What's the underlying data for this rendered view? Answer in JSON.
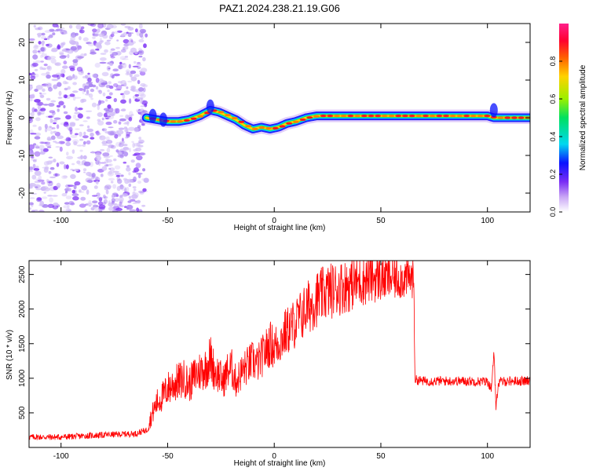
{
  "title": "PAZ1.2024.238.21.19.G06",
  "chart_data": [
    {
      "type": "heatmap",
      "xlabel": "Height of straight line (km)",
      "ylabel": "Frequency (Hz)",
      "xlim": [
        -115,
        120
      ],
      "ylim": [
        -25,
        25
      ],
      "xticks": [
        -100,
        -50,
        0,
        50,
        100
      ],
      "yticks": [
        -20,
        -10,
        0,
        10,
        20
      ],
      "colorbar": {
        "label": "Normalized spectral amplitude",
        "range": [
          0,
          1
        ],
        "ticks": [
          0.0,
          0.2,
          0.4,
          0.6,
          0.8
        ],
        "colors": [
          "#ffffff",
          "#c9a6f5",
          "#7a2cf5",
          "#0a12ff",
          "#00d8f0",
          "#00e060",
          "#9bf000",
          "#ffd200",
          "#ff6000",
          "#ff0030",
          "#ff208a"
        ]
      },
      "noise_region": {
        "x": [
          -115,
          -60
        ],
        "y": [
          -25,
          25
        ],
        "level": 0.15
      },
      "ridge": {
        "x": [
          -60,
          -55,
          -50,
          -45,
          -40,
          -35,
          -30,
          -26,
          -22,
          -18,
          -14,
          -10,
          -6,
          -2,
          2,
          6,
          10,
          15,
          20,
          30,
          40,
          50,
          60,
          70,
          80,
          90,
          100,
          103,
          106,
          110,
          120
        ],
        "y": [
          0,
          -0.5,
          -1,
          -1,
          -0.5,
          0.5,
          2,
          1.5,
          0.5,
          -0.5,
          -2,
          -3,
          -2.5,
          -3,
          -2.5,
          -1.5,
          -1,
          0,
          0.5,
          0.5,
          0.5,
          0.5,
          0.5,
          0.5,
          0.5,
          0.5,
          0.5,
          0,
          0,
          0,
          0
        ],
        "amplitude": 0.95
      },
      "grid": false
    },
    {
      "type": "line",
      "xlabel": "Height of straight line (km)",
      "ylabel": "SNR (10 * v/v)",
      "xlim": [
        -115,
        120
      ],
      "ylim": [
        0,
        2700
      ],
      "xticks": [
        -100,
        -50,
        0,
        50,
        100
      ],
      "yticks": [
        500,
        1000,
        1500,
        2000,
        2500
      ],
      "color": "#ff0000",
      "grid": false,
      "series": [
        {
          "x": [
            -115,
            -100,
            -80,
            -65,
            -60,
            -57,
            -55,
            -52,
            -50,
            -48,
            -45,
            -42,
            -40,
            -37,
            -35,
            -32,
            -30,
            -28,
            -26,
            -24,
            -22,
            -20,
            -18,
            -15,
            -12,
            -10,
            -8,
            -5,
            -2,
            0,
            3,
            5,
            10,
            15,
            20,
            25,
            30,
            35,
            40,
            45,
            50,
            55,
            60,
            64,
            65.5,
            66,
            70,
            80,
            90,
            100,
            102,
            103,
            104,
            105,
            106,
            110,
            120
          ],
          "y": [
            150,
            150,
            180,
            200,
            250,
            500,
            650,
            750,
            850,
            900,
            950,
            1000,
            900,
            1050,
            1100,
            1150,
            1300,
            1100,
            1050,
            950,
            1100,
            1150,
            950,
            1100,
            1200,
            1250,
            1200,
            1350,
            1500,
            1450,
            1550,
            1650,
            1800,
            2000,
            2150,
            2250,
            2300,
            2350,
            2400,
            2450,
            2450,
            2450,
            2450,
            2450,
            2430,
            980,
            960,
            960,
            960,
            950,
            850,
            1400,
            600,
            900,
            950,
            960,
            960
          ]
        }
      ]
    }
  ]
}
